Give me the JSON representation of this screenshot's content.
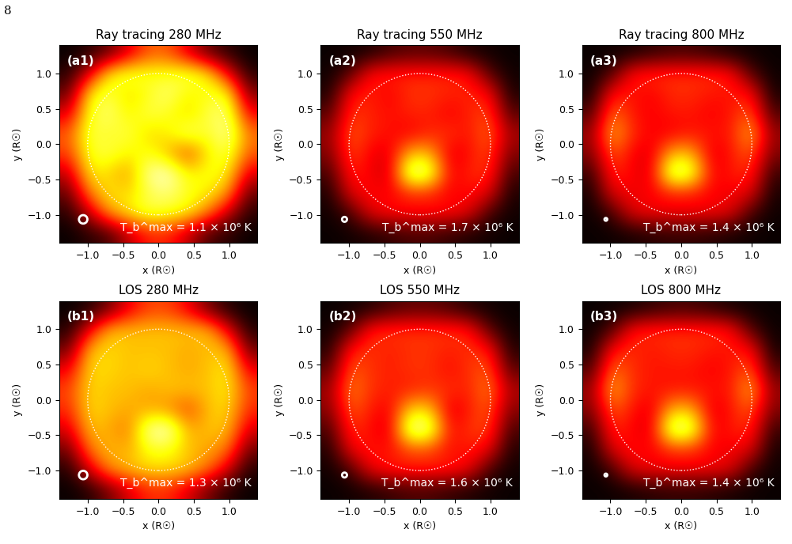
{
  "page_number": "8",
  "chart_data": [
    {
      "type": "heatmap",
      "title": "Ray tracing 280 MHz",
      "panel_label": "(a1)",
      "annotation": "T_b^max = 1.1 × 10⁶ K",
      "color": "hot",
      "value_range": [
        0.0,
        1.1
      ],
      "xlabel": "x (R☉)",
      "ylabel": "y (R☉)",
      "xlim": [
        -1.4,
        1.4
      ],
      "ylim": [
        -1.4,
        1.4
      ],
      "xticks": [
        {
          "value": -1.0,
          "label": "−1.0"
        },
        {
          "value": -0.5,
          "label": "−0.5"
        },
        0.0,
        0.5,
        1.0
      ],
      "yticks": [
        {
          "value": -1.0,
          "label": "−1.0"
        },
        {
          "value": -0.5,
          "label": "−0.5"
        },
        0.0,
        0.5,
        1.0
      ],
      "cell_x": [
        -1.26,
        -0.98,
        -0.7,
        -0.42,
        -0.14,
        0.14,
        0.42,
        0.7,
        0.98,
        1.26
      ],
      "cell_y": [
        1.26,
        0.98,
        0.7,
        0.42,
        0.14,
        -0.14,
        -0.42,
        -0.7,
        -0.98,
        -1.26
      ],
      "cells": [
        [
          0,
          0.05,
          0.15,
          0.35,
          0.55,
          0.55,
          0.35,
          0.15,
          0.05,
          0
        ],
        [
          0.05,
          0.35,
          0.8,
          0.9,
          0.85,
          0.85,
          0.9,
          0.8,
          0.4,
          0.05
        ],
        [
          0.15,
          0.8,
          0.9,
          0.75,
          0.85,
          0.95,
          0.8,
          0.85,
          0.85,
          0.2
        ],
        [
          0.35,
          0.85,
          0.95,
          0.8,
          0.9,
          0.85,
          0.75,
          0.9,
          0.95,
          0.4
        ],
        [
          0.55,
          0.9,
          0.85,
          0.9,
          0.75,
          0.8,
          0.95,
          0.85,
          1.0,
          0.6
        ],
        [
          0.5,
          0.85,
          0.9,
          0.8,
          0.85,
          0.7,
          0.5,
          0.8,
          0.9,
          0.55
        ],
        [
          0.3,
          0.8,
          0.75,
          0.65,
          1.0,
          1.05,
          0.8,
          0.85,
          0.8,
          0.35
        ],
        [
          0.15,
          0.6,
          0.8,
          0.75,
          0.9,
          0.95,
          0.85,
          0.8,
          0.65,
          0.15
        ],
        [
          0.05,
          0.3,
          0.65,
          0.8,
          0.9,
          0.85,
          0.8,
          0.6,
          0.3,
          0.05
        ],
        [
          0,
          0.05,
          0.1,
          0.3,
          0.45,
          0.45,
          0.3,
          0.1,
          0.05,
          0
        ]
      ]
    },
    {
      "type": "heatmap",
      "title": "Ray tracing 550 MHz",
      "panel_label": "(a2)",
      "annotation": "T_b^max = 1.7 × 10⁶ K",
      "color": "hot",
      "value_range": [
        0.0,
        1.7
      ],
      "xlabel": "x (R☉)",
      "ylabel": "y (R☉)",
      "xlim": [
        -1.4,
        1.4
      ],
      "ylim": [
        -1.4,
        1.4
      ],
      "xticks": [
        {
          "value": -1.0,
          "label": "−1.0"
        },
        {
          "value": -0.5,
          "label": "−0.5"
        },
        0.0,
        0.5,
        1.0
      ],
      "yticks": [
        {
          "value": -1.0,
          "label": "−1.0"
        },
        {
          "value": -0.5,
          "label": "−0.5"
        },
        0.0,
        0.5,
        1.0
      ],
      "cell_x": [
        -1.26,
        -0.98,
        -0.7,
        -0.42,
        -0.14,
        0.14,
        0.42,
        0.7,
        0.98,
        1.26
      ],
      "cell_y": [
        1.26,
        0.98,
        0.7,
        0.42,
        0.14,
        -0.14,
        -0.42,
        -0.7,
        -0.98,
        -1.26
      ],
      "cells": [
        [
          0,
          0.02,
          0.05,
          0.15,
          0.2,
          0.2,
          0.15,
          0.05,
          0.02,
          0
        ],
        [
          0.02,
          0.2,
          0.65,
          0.7,
          0.7,
          0.7,
          0.7,
          0.65,
          0.2,
          0.02
        ],
        [
          0.05,
          0.65,
          0.7,
          0.6,
          0.75,
          0.75,
          0.7,
          0.7,
          0.65,
          0.05
        ],
        [
          0.2,
          0.75,
          0.7,
          0.65,
          0.7,
          0.7,
          0.6,
          0.7,
          0.8,
          0.2
        ],
        [
          0.35,
          0.85,
          0.7,
          0.65,
          0.6,
          0.7,
          0.75,
          0.65,
          0.9,
          0.4
        ],
        [
          0.3,
          0.8,
          0.6,
          0.55,
          1.1,
          1.1,
          0.55,
          0.65,
          0.8,
          0.3
        ],
        [
          0.15,
          0.7,
          0.6,
          0.5,
          1.6,
          1.5,
          0.6,
          0.7,
          0.75,
          0.15
        ],
        [
          0.05,
          0.55,
          0.65,
          0.6,
          0.7,
          0.7,
          0.6,
          0.65,
          0.55,
          0.05
        ],
        [
          0.02,
          0.15,
          0.55,
          0.65,
          0.65,
          0.65,
          0.65,
          0.55,
          0.15,
          0.02
        ],
        [
          0,
          0.02,
          0.05,
          0.1,
          0.15,
          0.15,
          0.1,
          0.05,
          0.02,
          0
        ]
      ]
    },
    {
      "type": "heatmap",
      "title": "Ray tracing 800 MHz",
      "panel_label": "(a3)",
      "annotation": "T_b^max = 1.4 × 10⁶ K",
      "color": "hot",
      "value_range": [
        0.0,
        1.4
      ],
      "xlabel": "x (R☉)",
      "ylabel": "y (R☉)",
      "xlim": [
        -1.4,
        1.4
      ],
      "ylim": [
        -1.4,
        1.4
      ],
      "xticks": [
        {
          "value": -1.0,
          "label": "−1.0"
        },
        {
          "value": -0.5,
          "label": "−0.5"
        },
        0.0,
        0.5,
        1.0
      ],
      "yticks": [
        {
          "value": -1.0,
          "label": "−1.0"
        },
        {
          "value": -0.5,
          "label": "−0.5"
        },
        0.0,
        0.5,
        1.0
      ],
      "cell_x": [
        -1.26,
        -0.98,
        -0.7,
        -0.42,
        -0.14,
        0.14,
        0.42,
        0.7,
        0.98,
        1.26
      ],
      "cell_y": [
        1.26,
        0.98,
        0.7,
        0.42,
        0.14,
        -0.14,
        -0.42,
        -0.7,
        -0.98,
        -1.26
      ],
      "cells": [
        [
          0,
          0.01,
          0.03,
          0.08,
          0.12,
          0.12,
          0.08,
          0.03,
          0.01,
          0
        ],
        [
          0.01,
          0.15,
          0.55,
          0.6,
          0.6,
          0.6,
          0.6,
          0.55,
          0.15,
          0.01
        ],
        [
          0.03,
          0.55,
          0.55,
          0.5,
          0.6,
          0.6,
          0.55,
          0.55,
          0.55,
          0.03
        ],
        [
          0.15,
          0.75,
          0.55,
          0.5,
          0.55,
          0.55,
          0.5,
          0.55,
          0.7,
          0.15
        ],
        [
          0.3,
          0.9,
          0.6,
          0.5,
          0.5,
          0.55,
          0.55,
          0.55,
          0.9,
          0.3
        ],
        [
          0.25,
          0.7,
          0.5,
          0.45,
          0.9,
          0.9,
          0.45,
          0.55,
          0.7,
          0.25
        ],
        [
          0.1,
          0.6,
          0.5,
          0.45,
          1.3,
          1.2,
          0.5,
          0.55,
          0.6,
          0.1
        ],
        [
          0.03,
          0.45,
          0.5,
          0.5,
          0.55,
          0.55,
          0.5,
          0.5,
          0.45,
          0.03
        ],
        [
          0.01,
          0.12,
          0.45,
          0.5,
          0.5,
          0.5,
          0.5,
          0.45,
          0.12,
          0.01
        ],
        [
          0,
          0.01,
          0.03,
          0.06,
          0.08,
          0.08,
          0.06,
          0.03,
          0.01,
          0
        ]
      ]
    },
    {
      "type": "heatmap",
      "title": "LOS 280 MHz",
      "panel_label": "(b1)",
      "annotation": "T_b^max = 1.3 × 10⁶ K",
      "color": "hot",
      "value_range": [
        0.0,
        1.3
      ],
      "xlabel": "x (R☉)",
      "ylabel": "y (R☉)",
      "xlim": [
        -1.4,
        1.4
      ],
      "ylim": [
        -1.4,
        1.4
      ],
      "xticks": [
        {
          "value": -1.0,
          "label": "−1.0"
        },
        {
          "value": -0.5,
          "label": "−0.5"
        },
        0.0,
        0.5,
        1.0
      ],
      "yticks": [
        {
          "value": -1.0,
          "label": "−1.0"
        },
        {
          "value": -0.5,
          "label": "−0.5"
        },
        0.0,
        0.5,
        1.0
      ],
      "cell_x": [
        -1.26,
        -0.98,
        -0.7,
        -0.42,
        -0.14,
        0.14,
        0.42,
        0.7,
        0.98,
        1.26
      ],
      "cell_y": [
        1.26,
        0.98,
        0.7,
        0.42,
        0.14,
        -0.14,
        -0.42,
        -0.7,
        -0.98,
        -1.26
      ],
      "cells": [
        [
          0,
          0.05,
          0.2,
          0.45,
          0.6,
          0.6,
          0.45,
          0.2,
          0.05,
          0
        ],
        [
          0.05,
          0.45,
          0.85,
          0.85,
          0.85,
          0.85,
          0.85,
          0.85,
          0.45,
          0.05
        ],
        [
          0.2,
          0.85,
          0.9,
          0.85,
          0.85,
          0.85,
          0.8,
          0.85,
          0.85,
          0.2
        ],
        [
          0.45,
          0.9,
          0.9,
          0.85,
          0.9,
          0.85,
          0.8,
          0.85,
          0.95,
          0.45
        ],
        [
          0.6,
          0.9,
          0.85,
          0.85,
          0.8,
          0.85,
          0.85,
          0.85,
          0.95,
          0.6
        ],
        [
          0.55,
          0.9,
          0.85,
          0.8,
          0.8,
          0.75,
          0.6,
          0.85,
          0.9,
          0.55
        ],
        [
          0.4,
          0.85,
          0.8,
          0.7,
          1.2,
          1.25,
          0.8,
          0.85,
          0.85,
          0.4
        ],
        [
          0.2,
          0.7,
          0.85,
          0.8,
          1.0,
          1.0,
          0.85,
          0.8,
          0.7,
          0.2
        ],
        [
          0.05,
          0.4,
          0.75,
          0.85,
          0.9,
          0.9,
          0.85,
          0.7,
          0.4,
          0.05
        ],
        [
          0,
          0.05,
          0.2,
          0.4,
          0.55,
          0.55,
          0.4,
          0.2,
          0.05,
          0
        ]
      ]
    },
    {
      "type": "heatmap",
      "title": "LOS 550 MHz",
      "panel_label": "(b2)",
      "annotation": "T_b^max = 1.6 × 10⁶ K",
      "color": "hot",
      "value_range": [
        0.0,
        1.6
      ],
      "xlabel": "x (R☉)",
      "ylabel": "y (R☉)",
      "xlim": [
        -1.4,
        1.4
      ],
      "ylim": [
        -1.4,
        1.4
      ],
      "xticks": [
        {
          "value": -1.0,
          "label": "−1.0"
        },
        {
          "value": -0.5,
          "label": "−0.5"
        },
        0.0,
        0.5,
        1.0
      ],
      "yticks": [
        {
          "value": -1.0,
          "label": "−1.0"
        },
        {
          "value": -0.5,
          "label": "−0.5"
        },
        0.0,
        0.5,
        1.0
      ],
      "cell_x": [
        -1.26,
        -0.98,
        -0.7,
        -0.42,
        -0.14,
        0.14,
        0.42,
        0.7,
        0.98,
        1.26
      ],
      "cell_y": [
        1.26,
        0.98,
        0.7,
        0.42,
        0.14,
        -0.14,
        -0.42,
        -0.7,
        -0.98,
        -1.26
      ],
      "cells": [
        [
          0,
          0.02,
          0.06,
          0.15,
          0.2,
          0.2,
          0.15,
          0.06,
          0.02,
          0
        ],
        [
          0.02,
          0.2,
          0.65,
          0.7,
          0.7,
          0.7,
          0.7,
          0.65,
          0.2,
          0.02
        ],
        [
          0.06,
          0.65,
          0.7,
          0.65,
          0.7,
          0.7,
          0.65,
          0.7,
          0.65,
          0.06
        ],
        [
          0.2,
          0.8,
          0.7,
          0.65,
          0.7,
          0.7,
          0.6,
          0.7,
          0.8,
          0.2
        ],
        [
          0.35,
          0.9,
          0.7,
          0.65,
          0.65,
          0.7,
          0.7,
          0.65,
          0.9,
          0.4
        ],
        [
          0.3,
          0.8,
          0.65,
          0.55,
          1.1,
          1.1,
          0.5,
          0.65,
          0.8,
          0.3
        ],
        [
          0.15,
          0.7,
          0.6,
          0.5,
          1.5,
          1.45,
          0.6,
          0.7,
          0.75,
          0.15
        ],
        [
          0.06,
          0.55,
          0.65,
          0.6,
          0.75,
          0.75,
          0.6,
          0.65,
          0.55,
          0.06
        ],
        [
          0.02,
          0.15,
          0.55,
          0.65,
          0.65,
          0.65,
          0.65,
          0.55,
          0.15,
          0.02
        ],
        [
          0,
          0.02,
          0.05,
          0.1,
          0.15,
          0.15,
          0.1,
          0.05,
          0.02,
          0
        ]
      ]
    },
    {
      "type": "heatmap",
      "title": "LOS 800 MHz",
      "panel_label": "(b3)",
      "annotation": "T_b^max = 1.4 × 10⁶ K",
      "color": "hot",
      "value_range": [
        0.0,
        1.4
      ],
      "xlabel": "x (R☉)",
      "ylabel": "y (R☉)",
      "xlim": [
        -1.4,
        1.4
      ],
      "ylim": [
        -1.4,
        1.4
      ],
      "xticks": [
        {
          "value": -1.0,
          "label": "−1.0"
        },
        {
          "value": -0.5,
          "label": "−0.5"
        },
        0.0,
        0.5,
        1.0
      ],
      "yticks": [
        {
          "value": -1.0,
          "label": "−1.0"
        },
        {
          "value": -0.5,
          "label": "−0.5"
        },
        0.0,
        0.5,
        1.0
      ],
      "cell_x": [
        -1.26,
        -0.98,
        -0.7,
        -0.42,
        -0.14,
        0.14,
        0.42,
        0.7,
        0.98,
        1.26
      ],
      "cell_y": [
        1.26,
        0.98,
        0.7,
        0.42,
        0.14,
        -0.14,
        -0.42,
        -0.7,
        -0.98,
        -1.26
      ],
      "cells": [
        [
          0,
          0.01,
          0.03,
          0.08,
          0.12,
          0.12,
          0.08,
          0.03,
          0.01,
          0
        ],
        [
          0.01,
          0.15,
          0.55,
          0.6,
          0.6,
          0.6,
          0.6,
          0.55,
          0.15,
          0.01
        ],
        [
          0.03,
          0.55,
          0.6,
          0.55,
          0.6,
          0.6,
          0.55,
          0.55,
          0.55,
          0.03
        ],
        [
          0.15,
          0.75,
          0.6,
          0.55,
          0.55,
          0.55,
          0.5,
          0.55,
          0.7,
          0.15
        ],
        [
          0.3,
          0.9,
          0.6,
          0.55,
          0.55,
          0.55,
          0.55,
          0.55,
          0.9,
          0.3
        ],
        [
          0.25,
          0.7,
          0.55,
          0.45,
          0.9,
          0.9,
          0.45,
          0.55,
          0.7,
          0.25
        ],
        [
          0.1,
          0.6,
          0.5,
          0.45,
          1.3,
          1.25,
          0.5,
          0.55,
          0.6,
          0.1
        ],
        [
          0.03,
          0.45,
          0.55,
          0.5,
          0.6,
          0.6,
          0.5,
          0.5,
          0.45,
          0.03
        ],
        [
          0.01,
          0.12,
          0.45,
          0.5,
          0.5,
          0.5,
          0.5,
          0.45,
          0.12,
          0.01
        ],
        [
          0,
          0.01,
          0.03,
          0.06,
          0.08,
          0.08,
          0.06,
          0.03,
          0.01,
          0
        ]
      ]
    }
  ]
}
